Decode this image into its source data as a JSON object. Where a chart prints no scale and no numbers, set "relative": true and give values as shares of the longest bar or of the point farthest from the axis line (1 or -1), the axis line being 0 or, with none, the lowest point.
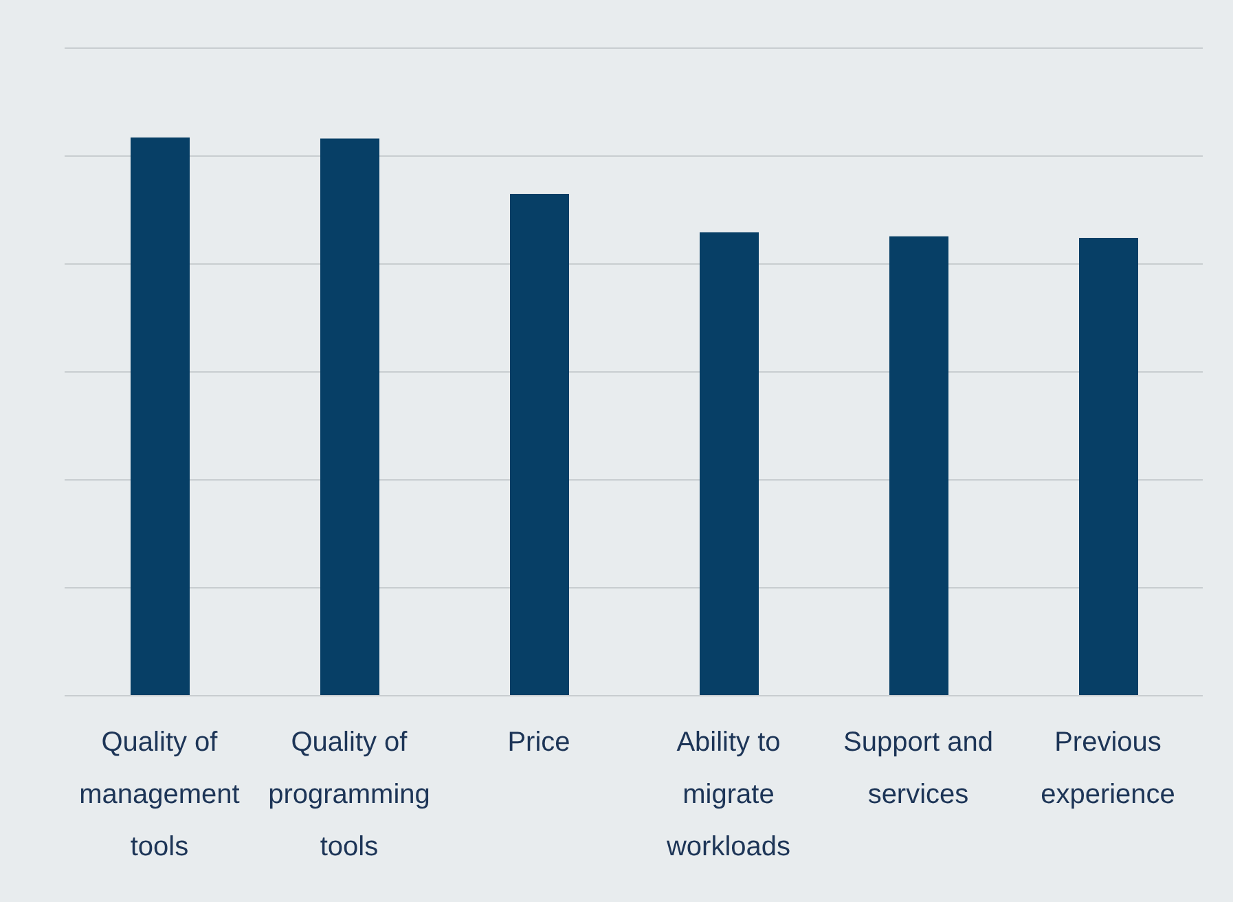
{
  "chart_data": {
    "type": "bar",
    "relative": true,
    "grid": "y",
    "categories": [
      "Quality of management tools",
      "Quality of programming tools",
      "Price",
      "Ability to migrate workloads",
      "Support and services",
      "Previous experience"
    ],
    "values": [
      1,
      0.998,
      0.899,
      0.83,
      0.823,
      0.82
    ],
    "color": "#073f66"
  }
}
